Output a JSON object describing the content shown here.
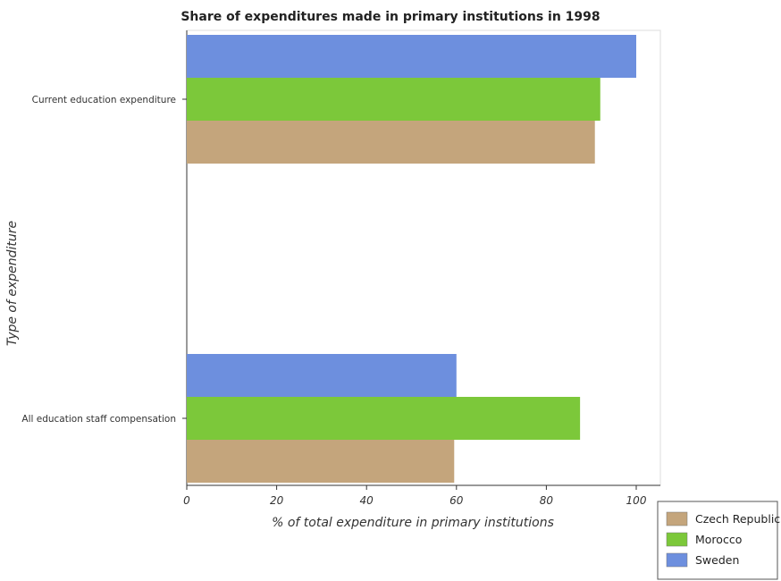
{
  "chart_data": {
    "type": "bar",
    "orientation": "horizontal",
    "title": "Share of expenditures made in primary institutions in 1998",
    "xlabel": "% of total expenditure in primary institutions",
    "ylabel": "Type of expenditure",
    "xlim": [
      0,
      100
    ],
    "xticks": [
      "0",
      "20",
      "40",
      "60",
      "80",
      "100"
    ],
    "grid": false,
    "legend_position": "bottom-right",
    "categories": [
      "All education staff compensation",
      "Current education expenditure"
    ],
    "series": [
      {
        "name": "Czech Republic",
        "color": "#c4a57c",
        "values": [
          59.5,
          90.8
        ]
      },
      {
        "name": "Morocco",
        "color": "#7cc83a",
        "values": [
          87.5,
          92.0
        ]
      },
      {
        "name": "Sweden",
        "color": "#6d8fde",
        "values": [
          60.0,
          100.0
        ]
      }
    ]
  }
}
